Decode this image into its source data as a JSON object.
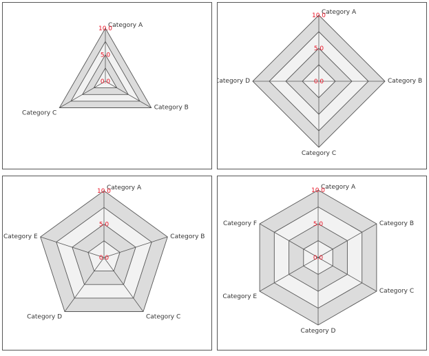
{
  "colors": {
    "band_dark": "#dcdcdc",
    "band_light": "#f2f2f2",
    "grid_line": "#555555",
    "tick_label": "#e81123",
    "text": "#333333"
  },
  "chart_data": [
    {
      "type": "radar",
      "categories": [
        "Category A",
        "Category B",
        "Category C"
      ],
      "radial_range": [
        0,
        10
      ],
      "tick_labels": [
        "10.0",
        "5.0",
        "0.0"
      ],
      "series": []
    },
    {
      "type": "radar",
      "categories": [
        "Category A",
        "Category B",
        "Category C",
        "Category D"
      ],
      "radial_range": [
        0,
        10
      ],
      "tick_labels": [
        "10.0",
        "5.0",
        "0.0"
      ],
      "series": []
    },
    {
      "type": "radar",
      "categories": [
        "Category A",
        "Category B",
        "Category C",
        "Category D",
        "Category E"
      ],
      "radial_range": [
        0,
        10
      ],
      "tick_labels": [
        "10.0",
        "5.0",
        "0.0"
      ],
      "series": []
    },
    {
      "type": "radar",
      "categories": [
        "Category A",
        "Category B",
        "Category C",
        "Category D",
        "Category E",
        "Category F"
      ],
      "radial_range": [
        0,
        10
      ],
      "tick_labels": [
        "10.0",
        "5.0",
        "0.0"
      ],
      "series": []
    }
  ]
}
